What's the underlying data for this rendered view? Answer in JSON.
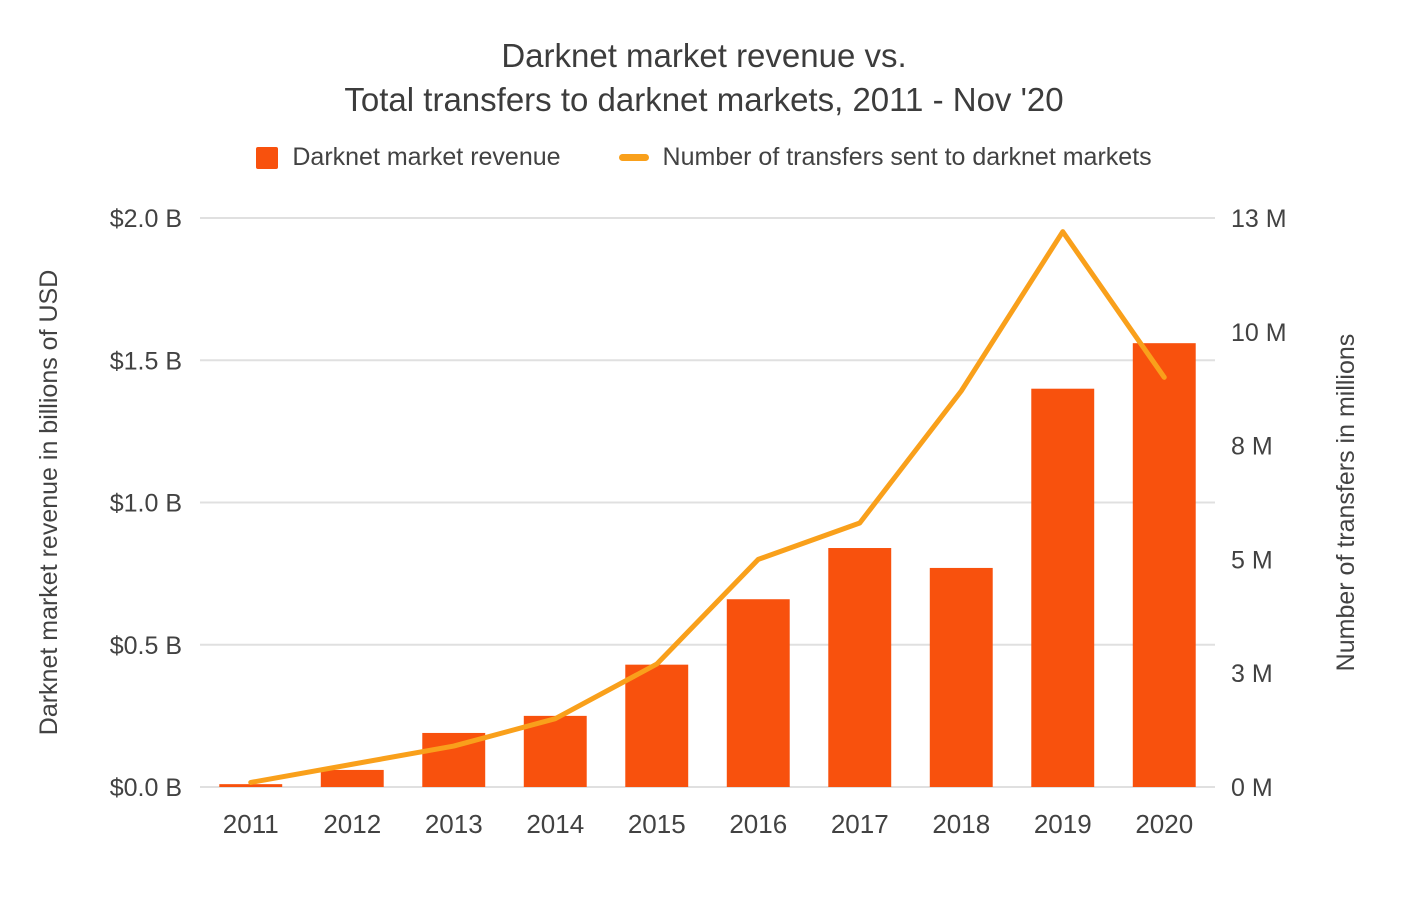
{
  "header": {
    "title_line1": "Darknet market revenue vs.",
    "title_line2": "Total transfers to darknet markets, 2011 - Nov '20"
  },
  "chart_data": {
    "type": "bar",
    "title": "Darknet market revenue vs. Total transfers to darknet markets, 2011 - Nov '20",
    "categories": [
      "2011",
      "2012",
      "2013",
      "2014",
      "2015",
      "2016",
      "2017",
      "2018",
      "2019",
      "2020"
    ],
    "series": [
      {
        "name": "Darknet market revenue",
        "type": "bar",
        "axis": "left",
        "color": "#F8510D",
        "values": [
          0.01,
          0.06,
          0.19,
          0.25,
          0.43,
          0.66,
          0.84,
          0.77,
          1.4,
          1.56
        ]
      },
      {
        "name": "Number of transfers sent to darknet markets",
        "type": "line",
        "axis": "right",
        "color": "#F9A01B",
        "values": [
          0.1,
          0.5,
          0.9,
          1.5,
          2.7,
          5.0,
          5.8,
          8.7,
          12.2,
          9.0
        ]
      }
    ],
    "left_axis": {
      "label": "Darknet market revenue in billions of USD",
      "min": 0,
      "max": 2.0,
      "ticks": [
        0,
        0.5,
        1.0,
        1.5,
        2.0
      ],
      "tick_labels": [
        "$0.0 B",
        "$0.5 B",
        "$1.0 B",
        "$1.5 B",
        "$2.0 B"
      ]
    },
    "right_axis": {
      "label": "Number of transfers in millions",
      "min": 0,
      "max": 12.5,
      "ticks": [
        0,
        2.5,
        5,
        7.5,
        10,
        12.5
      ],
      "tick_labels": [
        "0 M",
        "3 M",
        "5 M",
        "8 M",
        "10 M",
        "13 M"
      ]
    },
    "grid": true,
    "legend_position": "top",
    "grid_color": "#e0e0e0",
    "text_color": "#424242"
  }
}
